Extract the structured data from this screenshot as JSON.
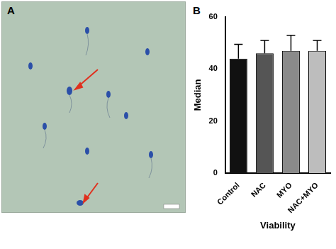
{
  "panel_labels": [
    "A",
    "B"
  ],
  "chart_data": {
    "type": "bar",
    "categories": [
      "Control",
      "NAC",
      "MYO",
      "NAC+MYO"
    ],
    "values": [
      44,
      46,
      47,
      47
    ],
    "errors": [
      5.5,
      5,
      6,
      4
    ],
    "colors": [
      "#111111",
      "#555555",
      "#8a8a8a",
      "#bdbdbd"
    ],
    "x_label": "Viability",
    "y_label": "Median",
    "ylim": [
      0,
      60
    ],
    "yticks": [
      0,
      20,
      40,
      60
    ],
    "grid": false
  }
}
